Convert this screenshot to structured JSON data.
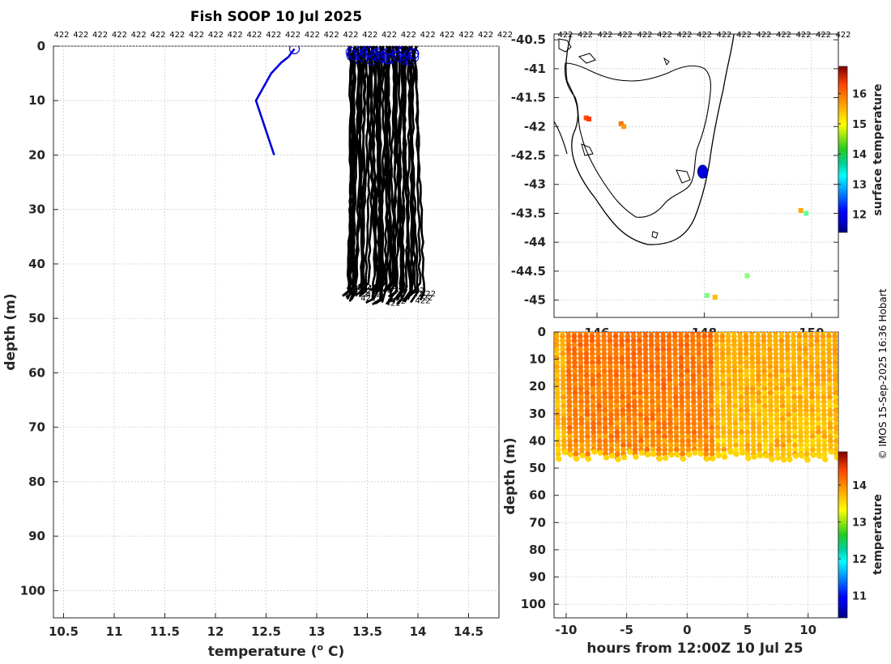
{
  "title": "Fish SOOP 10 Jul 2025",
  "copyright": "© IMOS 15-Sep-2025 16:36 Hobart",
  "colors": {
    "profile": "#000000",
    "highlight": "#0000dd",
    "grid": "#c8c8c8",
    "coast": "#000000"
  },
  "profile_count_label": "422",
  "chart_data": [
    {
      "id": "profiles",
      "type": "line",
      "xlabel": "temperature (",
      "xlabel_sup": "o",
      "xlabel_end": " C)",
      "ylabel": "depth (m)",
      "xlim": [
        10.4,
        14.8
      ],
      "ylim": [
        0,
        105
      ],
      "xticks": [
        "10.5",
        "11",
        "11.5",
        "12",
        "12.5",
        "13",
        "13.5",
        "14",
        "14.5"
      ],
      "yticks": [
        "0",
        "10",
        "20",
        "30",
        "40",
        "50",
        "60",
        "70",
        "80",
        "90",
        "100"
      ],
      "highlight_series": {
        "name": "422",
        "temperature": [
          12.78,
          12.72,
          12.65,
          12.55,
          12.4,
          12.58
        ],
        "depth": [
          0.5,
          2,
          3,
          5,
          10,
          20
        ]
      },
      "series_summary": {
        "count": 48,
        "temperature_range": [
          13.25,
          14.0
        ],
        "max_depth_range": [
          44,
          47
        ]
      }
    },
    {
      "id": "map",
      "type": "scatter",
      "xlim": [
        145.2,
        150.5
      ],
      "ylim": [
        -45.3,
        -40.4
      ],
      "yticks": [
        "-40.5",
        "-41",
        "-41.5",
        "-42",
        "-42.5",
        "-43",
        "-43.5",
        "-44",
        "-44.5",
        "-45"
      ],
      "xticks": [
        "146",
        "148",
        "150"
      ],
      "colorbar": {
        "label": "surface temperature",
        "ticks": [
          "12",
          "13",
          "14",
          "15",
          "16"
        ],
        "range": [
          11.4,
          16.9
        ]
      },
      "points": [
        {
          "lon": 145.8,
          "lat": -41.85,
          "temp": 15.8
        },
        {
          "lon": 145.85,
          "lat": -41.87,
          "temp": 15.9
        },
        {
          "lon": 146.45,
          "lat": -41.95,
          "temp": 15.6
        },
        {
          "lon": 146.5,
          "lat": -42.0,
          "temp": 15.4
        },
        {
          "lon": 147.95,
          "lat": -42.8,
          "temp": 11.5
        },
        {
          "lon": 148.0,
          "lat": -42.85,
          "temp": 11.5
        },
        {
          "lon": 149.8,
          "lat": -43.45,
          "temp": 15.3
        },
        {
          "lon": 149.9,
          "lat": -43.5,
          "temp": 14.0
        },
        {
          "lon": 148.05,
          "lat": -44.92,
          "temp": 14.1
        },
        {
          "lon": 148.2,
          "lat": -44.95,
          "temp": 15.2
        },
        {
          "lon": 148.8,
          "lat": -44.58,
          "temp": 14.2
        }
      ]
    },
    {
      "id": "timeseries",
      "type": "scatter",
      "xlabel": "hours from 12:00Z 10 Jul 25",
      "ylabel": "depth (m)",
      "xlim": [
        -11,
        12.5
      ],
      "ylim": [
        0,
        105
      ],
      "xticks": [
        "-10",
        "-5",
        "0",
        "5",
        "10"
      ],
      "yticks": [
        "0",
        "10",
        "20",
        "30",
        "40",
        "50",
        "60",
        "70",
        "80",
        "90",
        "100"
      ],
      "colorbar": {
        "label": "temperature",
        "ticks": [
          "11",
          "12",
          "13",
          "14"
        ],
        "range": [
          10.4,
          14.9
        ]
      },
      "casts": {
        "count": 48,
        "hours_range": [
          -10.8,
          12.2
        ],
        "temp_range": [
          13.3,
          14.0
        ],
        "max_depth_range": [
          44,
          47
        ]
      }
    }
  ]
}
